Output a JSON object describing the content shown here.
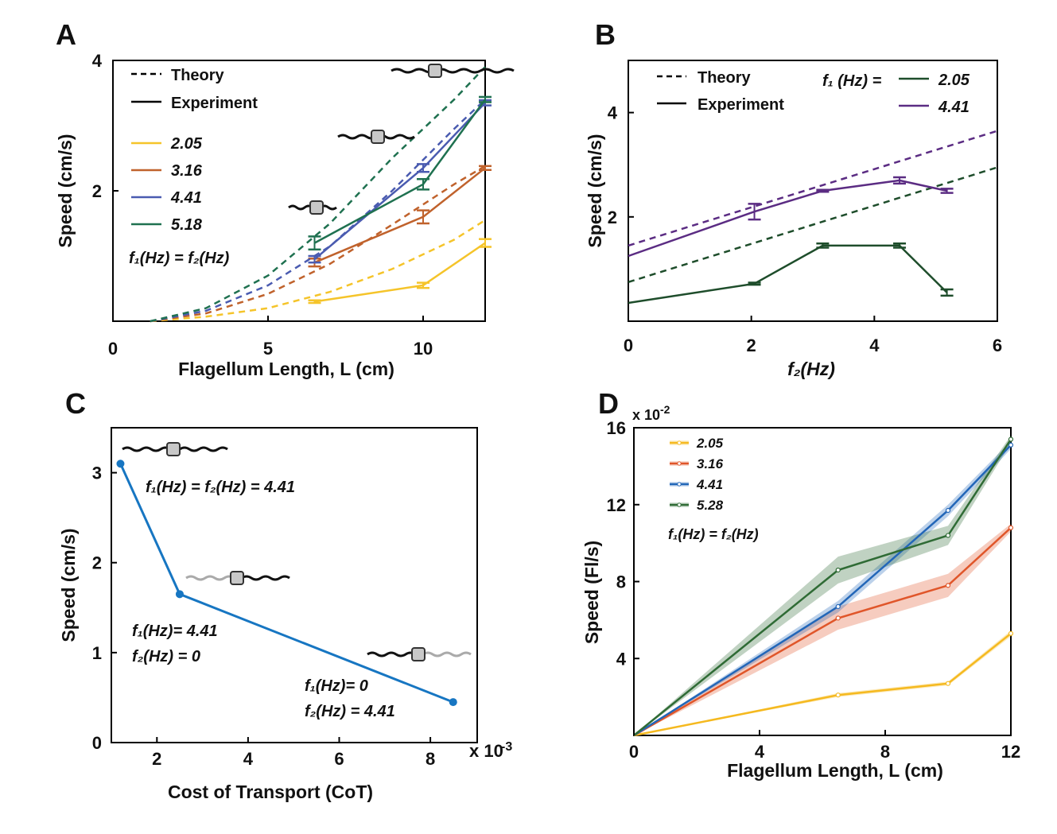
{
  "chart_data": [
    {
      "panel": "A",
      "type": "line",
      "xlabel": "Flagellum Length, L (cm)",
      "ylabel": "Speed (cm/s)",
      "xlim": [
        0,
        12
      ],
      "ylim": [
        0,
        4
      ],
      "xticks": [
        "0",
        "5",
        "10"
      ],
      "yticks": [
        "2",
        "4"
      ],
      "legend_style": [
        {
          "label": "Theory",
          "dash": true
        },
        {
          "label": "Experiment",
          "dash": false
        }
      ],
      "annotation": "f₁(Hz) = f₂(Hz)",
      "series": [
        {
          "name": "2.05",
          "color": "#F5C42A",
          "experiment": {
            "x": [
              6.5,
              10,
              12
            ],
            "y": [
              0.3,
              0.55,
              1.2
            ],
            "err": [
              0.02,
              0.04,
              0.06
            ]
          },
          "theory": {
            "x": [
              1.2,
              3,
              5,
              7,
              9,
              11,
              12
            ],
            "y": [
              0,
              0.07,
              0.2,
              0.45,
              0.8,
              1.25,
              1.55
            ]
          }
        },
        {
          "name": "3.16",
          "color": "#C0622C",
          "experiment": {
            "x": [
              6.5,
              10,
              12
            ],
            "y": [
              0.9,
              1.6,
              2.35
            ],
            "err": [
              0.06,
              0.1,
              0.03
            ]
          },
          "theory": {
            "x": [
              1.2,
              3,
              5,
              7,
              9,
              11,
              12
            ],
            "y": [
              0,
              0.12,
              0.42,
              0.88,
              1.48,
              2.1,
              2.38
            ]
          }
        },
        {
          "name": "4.41",
          "color": "#4A5BB0",
          "experiment": {
            "x": [
              6.5,
              10,
              12
            ],
            "y": [
              0.95,
              2.35,
              3.35
            ],
            "err": [
              0.05,
              0.06,
              0.04
            ]
          },
          "theory": {
            "x": [
              1.2,
              3,
              5,
              7,
              9,
              11,
              12
            ],
            "y": [
              0,
              0.16,
              0.55,
              1.15,
              2.0,
              2.95,
              3.4
            ]
          }
        },
        {
          "name": "5.18",
          "color": "#1F7150",
          "experiment": {
            "x": [
              6.5,
              10,
              12
            ],
            "y": [
              1.2,
              2.1,
              3.4
            ],
            "err": [
              0.1,
              0.08,
              0.04
            ]
          },
          "theory": {
            "x": [
              1.2,
              3,
              5,
              7,
              9,
              11,
              12
            ],
            "y": [
              0,
              0.2,
              0.7,
              1.5,
              2.5,
              3.4,
              3.9
            ]
          }
        }
      ]
    },
    {
      "panel": "B",
      "type": "line",
      "xlabel": "f₂(Hz)",
      "ylabel": "Speed (cm/s)",
      "xlim": [
        0,
        6
      ],
      "ylim": [
        0,
        5
      ],
      "xticks": [
        "0",
        "2",
        "4",
        "6"
      ],
      "yticks": [
        "2",
        "4"
      ],
      "legend_style": [
        {
          "label": "Theory",
          "dash": true
        },
        {
          "label": "Experiment",
          "dash": false
        }
      ],
      "legend_title": "f₁ (Hz) =",
      "series": [
        {
          "name": "2.05",
          "color": "#1E4D2B",
          "experiment": {
            "x": [
              0,
              2.05,
              3.16,
              4.41,
              5.18
            ],
            "y": [
              0.35,
              0.72,
              1.45,
              1.45,
              0.55
            ],
            "err": [
              0,
              0.02,
              0.04,
              0.04,
              0.06
            ]
          },
          "theory": {
            "x": [
              0,
              6
            ],
            "y": [
              0.75,
              2.95
            ]
          }
        },
        {
          "name": "4.41",
          "color": "#5B2C83",
          "experiment": {
            "x": [
              0,
              2.05,
              3.16,
              4.41,
              5.18
            ],
            "y": [
              1.25,
              2.1,
              2.5,
              2.7,
              2.5
            ],
            "err": [
              0,
              0.15,
              0.02,
              0.06,
              0.04
            ]
          },
          "theory": {
            "x": [
              0,
              6
            ],
            "y": [
              1.45,
              3.65
            ]
          }
        }
      ]
    },
    {
      "panel": "C",
      "type": "line",
      "xlabel": "Cost of Transport (CoT)",
      "ylabel": "Speed (cm/s)",
      "x_multiplier_label": "x 10",
      "x_multiplier_exp": "-3",
      "xlim": [
        1,
        9
      ],
      "ylim": [
        0,
        3.5
      ],
      "xticks": [
        "2",
        "4",
        "6",
        "8"
      ],
      "yticks": [
        "0",
        "1",
        "2",
        "3"
      ],
      "series": [
        {
          "name": "",
          "color": "#1776C2",
          "x": [
            1.2,
            2.5,
            8.5
          ],
          "y": [
            3.1,
            1.65,
            0.45
          ]
        }
      ],
      "annotations": [
        {
          "lines": [
            "f₁(Hz) = f₂(Hz) = 4.41"
          ]
        },
        {
          "lines": [
            "f₁(Hz)= 4.41",
            "f₂(Hz) = 0"
          ]
        },
        {
          "lines": [
            "f₁(Hz)= 0",
            "f₂(Hz) = 4.41"
          ]
        }
      ]
    },
    {
      "panel": "D",
      "type": "line",
      "xlabel": "Flagellum Length, L (cm)",
      "ylabel": "Speed (Fl/s)",
      "y_multiplier_label": "x 10",
      "y_multiplier_exp": "-2",
      "xlim": [
        0,
        12
      ],
      "ylim": [
        0,
        16
      ],
      "xticks": [
        "0",
        "4",
        "8",
        "12"
      ],
      "yticks": [
        "4",
        "8",
        "12",
        "16"
      ],
      "annotation": "f₁(Hz) = f₂(Hz)",
      "series": [
        {
          "name": "2.05",
          "color": "#F5B91F",
          "x": [
            0,
            6.5,
            10,
            12
          ],
          "y": [
            0,
            2.1,
            2.7,
            5.3
          ],
          "band": [
            0,
            0.1,
            0.1,
            0.15
          ]
        },
        {
          "name": "3.16",
          "color": "#E0562A",
          "x": [
            0,
            6.5,
            10,
            12
          ],
          "y": [
            0,
            6.1,
            7.8,
            10.8
          ],
          "band": [
            0,
            0.6,
            0.6,
            0.2
          ]
        },
        {
          "name": "4.41",
          "color": "#2266B8",
          "x": [
            0,
            6.5,
            10,
            12
          ],
          "y": [
            0,
            6.7,
            11.7,
            15.1
          ],
          "band": [
            0,
            0.3,
            0.3,
            0.2
          ]
        },
        {
          "name": "5.28",
          "color": "#2F6B35",
          "x": [
            0,
            6.5,
            10,
            12
          ],
          "y": [
            0,
            8.6,
            10.4,
            15.4
          ],
          "band": [
            0,
            0.7,
            0.5,
            0.2
          ]
        }
      ]
    }
  ]
}
